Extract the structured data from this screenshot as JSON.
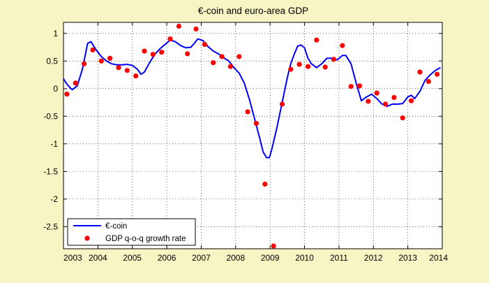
{
  "chart_data": {
    "type": "line",
    "title": "€-coin and euro-area GDP",
    "xlabel": "",
    "ylabel": "",
    "xlim": [
      2003.0,
      2014.0
    ],
    "ylim": [
      -2.9,
      1.2
    ],
    "x_ticks": [
      2003,
      2004,
      2005,
      2006,
      2007,
      2008,
      2009,
      2010,
      2011,
      2012,
      2013,
      2014
    ],
    "x_tick_labels": [
      "2003",
      "2004",
      "2005",
      "2006",
      "2007",
      "2008",
      "2009",
      "2010",
      "2011",
      "2012",
      "2013",
      "2014"
    ],
    "y_ticks": [
      -2.5,
      -2,
      -1.5,
      -1,
      -0.5,
      0,
      0.5,
      1
    ],
    "y_tick_labels": [
      "-2.5",
      "-2",
      "-1.5",
      "-1",
      "-0.5",
      "0",
      "0.5",
      "1"
    ],
    "grid": true,
    "legend_position": "bottom-left",
    "colors": {
      "background": "#f7f5c4",
      "plot_bg": "#ffffff",
      "line": "#0000ff",
      "markers": "#ff0000"
    },
    "series": [
      {
        "name": "€-coin",
        "kind": "line",
        "x": [
          2003.0,
          2003.1,
          2003.25,
          2003.4,
          2003.55,
          2003.7,
          2003.8,
          2003.95,
          2004.1,
          2004.25,
          2004.4,
          2004.55,
          2004.7,
          2004.85,
          2005.0,
          2005.15,
          2005.25,
          2005.35,
          2005.5,
          2005.65,
          2005.8,
          2005.95,
          2006.1,
          2006.25,
          2006.4,
          2006.55,
          2006.7,
          2006.8,
          2006.9,
          2007.05,
          2007.2,
          2007.35,
          2007.5,
          2007.65,
          2007.8,
          2007.95,
          2008.1,
          2008.25,
          2008.4,
          2008.55,
          2008.7,
          2008.8,
          2008.9,
          2008.98,
          2009.05,
          2009.2,
          2009.35,
          2009.5,
          2009.6,
          2009.7,
          2009.8,
          2009.9,
          2010.0,
          2010.1,
          2010.2,
          2010.35,
          2010.5,
          2010.65,
          2010.8,
          2010.95,
          2011.1,
          2011.2,
          2011.35,
          2011.5,
          2011.65,
          2011.8,
          2011.95,
          2012.1,
          2012.25,
          2012.4,
          2012.55,
          2012.7,
          2012.85,
          2013.0,
          2013.1,
          2013.2,
          2013.35,
          2013.5,
          2013.65,
          2013.8,
          2013.95
        ],
        "y": [
          0.18,
          0.08,
          -0.02,
          0.05,
          0.35,
          0.82,
          0.85,
          0.7,
          0.58,
          0.5,
          0.45,
          0.43,
          0.43,
          0.44,
          0.42,
          0.35,
          0.26,
          0.3,
          0.47,
          0.62,
          0.72,
          0.8,
          0.88,
          0.85,
          0.78,
          0.74,
          0.75,
          0.82,
          0.9,
          0.87,
          0.76,
          0.68,
          0.63,
          0.56,
          0.5,
          0.38,
          0.28,
          0.1,
          -0.2,
          -0.55,
          -0.9,
          -1.15,
          -1.25,
          -1.25,
          -1.1,
          -0.7,
          -0.25,
          0.2,
          0.45,
          0.62,
          0.77,
          0.79,
          0.74,
          0.55,
          0.45,
          0.38,
          0.45,
          0.55,
          0.55,
          0.52,
          0.6,
          0.6,
          0.45,
          0.1,
          -0.22,
          -0.15,
          -0.1,
          -0.18,
          -0.28,
          -0.32,
          -0.28,
          -0.28,
          -0.27,
          -0.15,
          -0.12,
          -0.18,
          -0.05,
          0.15,
          0.25,
          0.33,
          0.38
        ]
      },
      {
        "name": "GDP q-o-q growth rate",
        "kind": "scatter",
        "x": [
          2003.1,
          2003.35,
          2003.6,
          2003.85,
          2004.1,
          2004.35,
          2004.6,
          2004.85,
          2005.1,
          2005.35,
          2005.6,
          2005.85,
          2006.1,
          2006.35,
          2006.6,
          2006.85,
          2007.1,
          2007.35,
          2007.6,
          2007.85,
          2008.1,
          2008.35,
          2008.6,
          2008.85,
          2009.1,
          2009.35,
          2009.6,
          2009.85,
          2010.1,
          2010.35,
          2010.6,
          2010.85,
          2011.1,
          2011.35,
          2011.6,
          2011.85,
          2012.1,
          2012.35,
          2012.6,
          2012.85,
          2013.1,
          2013.35,
          2013.6,
          2013.85
        ],
        "y": [
          -0.1,
          0.1,
          0.45,
          0.7,
          0.5,
          0.55,
          0.38,
          0.33,
          0.23,
          0.68,
          0.62,
          0.66,
          0.9,
          1.13,
          0.63,
          1.08,
          0.8,
          0.47,
          0.58,
          0.4,
          0.58,
          -0.42,
          -0.63,
          -1.73,
          -2.85,
          -0.28,
          0.35,
          0.44,
          0.4,
          0.88,
          0.39,
          0.53,
          0.78,
          0.04,
          0.05,
          -0.23,
          -0.08,
          -0.28,
          -0.16,
          -0.53,
          -0.22,
          0.3,
          0.13,
          0.26
        ]
      }
    ]
  }
}
